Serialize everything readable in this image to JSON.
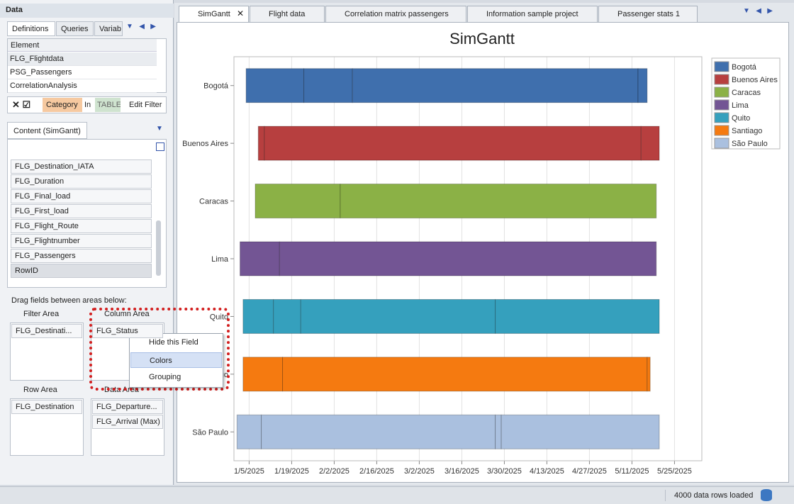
{
  "left_panel": {
    "title": "Data",
    "tabs": [
      "Definitions",
      "Queries",
      "Variab"
    ],
    "element_header": "Element",
    "elements": [
      "FLG_Flightdata",
      "PSG_Passengers",
      "CorrelationAnalysis"
    ],
    "filter": {
      "category": "Category",
      "in": "In",
      "table": "TABLE",
      "edit": "Edit Filter"
    },
    "content_tab": "Content (SimGantt)",
    "fields": [
      "FLG_Destination_IATA",
      "FLG_Duration",
      "FLG_Final_load",
      "FLG_First_load",
      "FLG_Flight_Route",
      "FLG_Flightnumber",
      "FLG_Passengers",
      "RowID"
    ],
    "drag_hint": "Drag fields between areas below:",
    "filter_area": {
      "title": "Filter Area",
      "fields": [
        "FLG_Destinati..."
      ]
    },
    "column_area": {
      "title": "Column Area",
      "fields": [
        "FLG_Status"
      ]
    },
    "row_area": {
      "title": "Row Area",
      "fields": [
        "FLG_Destination"
      ]
    },
    "data_area": {
      "title": "Data Area",
      "fields": [
        "FLG_Departure...",
        "FLG_Arrival (Max)"
      ]
    },
    "context_menu": [
      "Hide this Field",
      "Colors",
      "Grouping"
    ]
  },
  "tabs": [
    "SimGantt",
    "Flight data",
    "Correlation matrix passengers",
    "Information sample project",
    "Passenger stats 1"
  ],
  "chart": {
    "type": "gantt",
    "title": "SimGantt",
    "xlim": [
      "2024-12-31",
      "2025-06-03"
    ],
    "xticks": [
      {
        "value": "2025-01-05",
        "label": "1/5/2025"
      },
      {
        "value": "2025-01-19",
        "label": "1/19/2025"
      },
      {
        "value": "2025-02-02",
        "label": "2/2/2025"
      },
      {
        "value": "2025-02-16",
        "label": "2/16/2025"
      },
      {
        "value": "2025-03-02",
        "label": "3/2/2025"
      },
      {
        "value": "2025-03-16",
        "label": "3/16/2025"
      },
      {
        "value": "2025-03-30",
        "label": "3/30/2025"
      },
      {
        "value": "2025-04-13",
        "label": "4/13/2025"
      },
      {
        "value": "2025-04-27",
        "label": "4/27/2025"
      },
      {
        "value": "2025-05-11",
        "label": "5/11/2025"
      },
      {
        "value": "2025-05-25",
        "label": "5/25/2025"
      }
    ],
    "grid": true,
    "legend": "right",
    "rows": [
      {
        "name": "Bogotá",
        "color": "#3f6fad",
        "segments": [
          [
            "2025-01-04",
            "2025-01-23"
          ],
          [
            "2025-01-23",
            "2025-02-08"
          ],
          [
            "2025-02-08",
            "2025-05-13"
          ],
          [
            "2025-05-13",
            "2025-05-16"
          ]
        ]
      },
      {
        "name": "Buenos Aires",
        "color": "#b73f3f",
        "segments": [
          [
            "2025-01-08",
            "2025-01-10"
          ],
          [
            "2025-01-10",
            "2025-05-14"
          ],
          [
            "2025-05-14",
            "2025-05-20"
          ]
        ]
      },
      {
        "name": "Caracas",
        "color": "#8bb146",
        "segments": [
          [
            "2025-01-07",
            "2025-02-04"
          ],
          [
            "2025-02-04",
            "2025-05-19"
          ]
        ]
      },
      {
        "name": "Lima",
        "color": "#735594",
        "segments": [
          [
            "2025-01-02",
            "2025-01-15"
          ],
          [
            "2025-01-15",
            "2025-05-19"
          ]
        ]
      },
      {
        "name": "Quito",
        "color": "#35a0bd",
        "segments": [
          [
            "2025-01-03",
            "2025-01-13"
          ],
          [
            "2025-01-13",
            "2025-01-22"
          ],
          [
            "2025-01-22",
            "2025-03-27"
          ],
          [
            "2025-03-27",
            "2025-05-20"
          ]
        ]
      },
      {
        "name": "Santiago",
        "color": "#f57a10",
        "segments": [
          [
            "2025-01-03",
            "2025-01-16"
          ],
          [
            "2025-01-16",
            "2025-05-16"
          ],
          [
            "2025-05-16",
            "2025-05-17"
          ]
        ]
      },
      {
        "name": "São Paulo",
        "color": "#aac0df",
        "segments": [
          [
            "2025-01-01",
            "2025-01-09"
          ],
          [
            "2025-01-09",
            "2025-03-27"
          ],
          [
            "2025-03-27",
            "2025-03-29"
          ],
          [
            "2025-03-29",
            "2025-05-20"
          ]
        ]
      }
    ]
  },
  "status": "4000 data rows loaded"
}
